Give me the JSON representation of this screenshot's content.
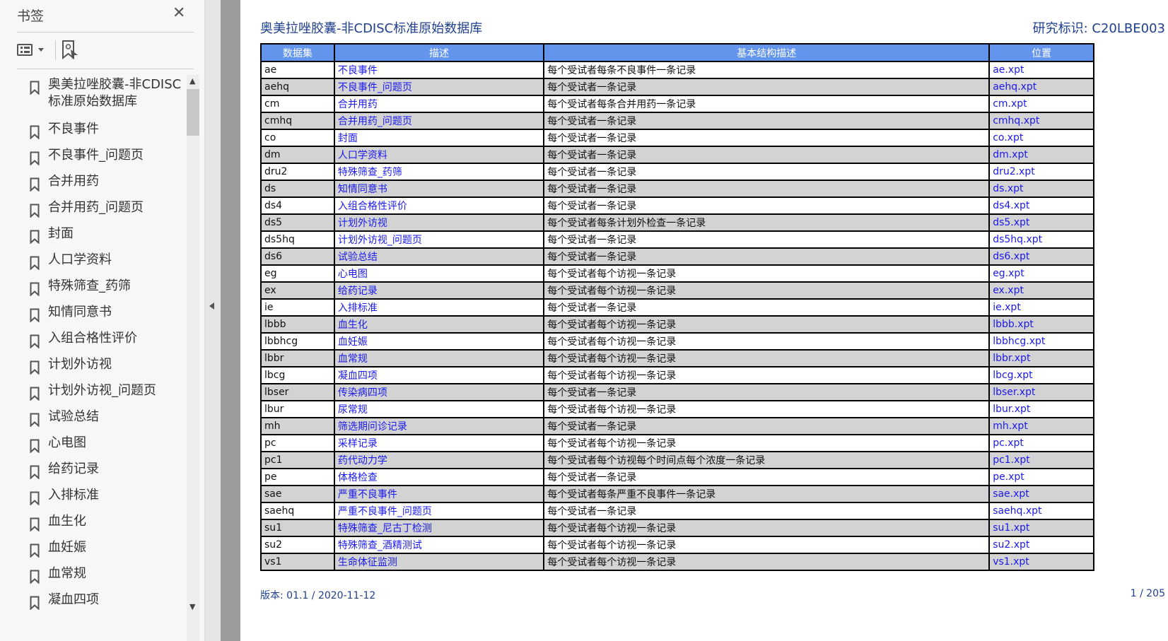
{
  "sidebar": {
    "title": "书签",
    "items": [
      "奥美拉唑胶囊-非CDISC标准原始数据库",
      "不良事件",
      "不良事件_问题页",
      "合并用药",
      "合并用药_问题页",
      "封面",
      "人口学资料",
      "特殊筛查_药筛",
      "知情同意书",
      "入组合格性评价",
      "计划外访视",
      "计划外访视_问题页",
      "试验总结",
      "心电图",
      "给药记录",
      "入排标准",
      "血生化",
      "血妊娠",
      "血常规",
      "凝血四项"
    ]
  },
  "document": {
    "title": "奥美拉唑胶囊-非CDISC标准原始数据库",
    "study_id": "研究标识: C20LBE003",
    "version": "版本:   01.1 / 2020-11-12",
    "page": "1 / 205"
  },
  "table": {
    "headers": [
      "数据集",
      "描述",
      "基本结构描述",
      "位置"
    ],
    "rows": [
      [
        "ae",
        "不良事件",
        "每个受试者每条不良事件一条记录",
        "ae.xpt"
      ],
      [
        "aehq",
        "不良事件_问题页",
        "每个受试者一条记录",
        "aehq.xpt"
      ],
      [
        "cm",
        "合并用药",
        "每个受试者每条合并用药一条记录",
        "cm.xpt"
      ],
      [
        "cmhq",
        "合并用药_问题页",
        "每个受试者一条记录",
        "cmhq.xpt"
      ],
      [
        "co",
        "封面",
        "每个受试者一条记录",
        "co.xpt"
      ],
      [
        "dm",
        "人口学资料",
        "每个受试者一条记录",
        "dm.xpt"
      ],
      [
        "dru2",
        "特殊筛查_药筛",
        "每个受试者一条记录",
        "dru2.xpt"
      ],
      [
        "ds",
        "知情同意书",
        "每个受试者一条记录",
        "ds.xpt"
      ],
      [
        "ds4",
        "入组合格性评价",
        "每个受试者一条记录",
        "ds4.xpt"
      ],
      [
        "ds5",
        "计划外访视",
        "每个受试者每条计划外检查一条记录",
        "ds5.xpt"
      ],
      [
        "ds5hq",
        "计划外访视_问题页",
        "每个受试者一条记录",
        "ds5hq.xpt"
      ],
      [
        "ds6",
        "试验总结",
        "每个受试者一条记录",
        "ds6.xpt"
      ],
      [
        "eg",
        "心电图",
        "每个受试者每个访视一条记录",
        "eg.xpt"
      ],
      [
        "ex",
        "给药记录",
        "每个受试者每个访视一条记录",
        "ex.xpt"
      ],
      [
        "ie",
        "入排标准",
        "每个受试者一条记录",
        "ie.xpt"
      ],
      [
        "lbbb",
        "血生化",
        "每个受试者每个访视一条记录",
        "lbbb.xpt"
      ],
      [
        "lbbhcg",
        "血妊娠",
        "每个受试者每个访视一条记录",
        "lbbhcg.xpt"
      ],
      [
        "lbbr",
        "血常规",
        "每个受试者每个访视一条记录",
        "lbbr.xpt"
      ],
      [
        "lbcg",
        "凝血四项",
        "每个受试者每个访视一条记录",
        "lbcg.xpt"
      ],
      [
        "lbser",
        "传染病四项",
        "每个受试者一条记录",
        "lbser.xpt"
      ],
      [
        "lbur",
        "尿常规",
        "每个受试者每个访视一条记录",
        "lbur.xpt"
      ],
      [
        "mh",
        "筛选期问诊记录",
        "每个受试者一条记录",
        "mh.xpt"
      ],
      [
        "pc",
        "采样记录",
        "每个受试者每个访视一条记录",
        "pc.xpt"
      ],
      [
        "pc1",
        "药代动力学",
        "每个受试者每个访视每个时间点每个浓度一条记录",
        "pc1.xpt"
      ],
      [
        "pe",
        "体格检查",
        "每个受试者一条记录",
        "pe.xpt"
      ],
      [
        "sae",
        "严重不良事件",
        "每个受试者每条严重不良事件一条记录",
        "sae.xpt"
      ],
      [
        "saehq",
        "严重不良事件_问题页",
        "每个受试者一条记录",
        "saehq.xpt"
      ],
      [
        "su1",
        "特殊筛查_尼古丁检测",
        "每个受试者每个访视一条记录",
        "su1.xpt"
      ],
      [
        "su2",
        "特殊筛查_酒精测试",
        "每个受试者每个访视一条记录",
        "su2.xpt"
      ],
      [
        "vs1",
        "生命体征监测",
        "每个受试者每个访视一条记录",
        "vs1.xpt"
      ]
    ]
  },
  "colors": {
    "header_bg": "#6495ed",
    "link": "#1a1aee",
    "title": "#1f3f8f",
    "alt_row": "#d3d3d3"
  }
}
